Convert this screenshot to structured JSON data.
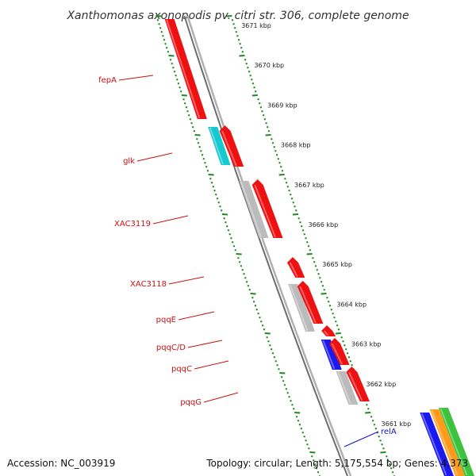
{
  "title": "Xanthomonas axonopodis pv. citri str. 306, complete genome",
  "footer": {
    "accession": "Accession: NC_003919",
    "topology": "Topology: circular; Length: 5,175,554 bp; Genes: 4,373"
  },
  "colors": {
    "backbone": "#8a8a8a",
    "ticks": "#1e8a1e",
    "gene_red": "#ee1111",
    "gene_cyan": "#16c8d0",
    "gene_grey": "#bbbbbb",
    "gene_blue": "#1a1aee",
    "gene_orange": "#ff9a1a",
    "gene_green": "#3cc23c",
    "label_red": "#cc1111",
    "label_blue": "#1111cc"
  },
  "scale_labels": [
    "3671 kbp",
    "3670 kbp",
    "3669 kbp",
    "3668 kbp",
    "3667 kbp",
    "3666 kbp",
    "3665 kbp",
    "3664 kbp",
    "3663 kbp",
    "3662 kbp",
    "3661 kbp"
  ],
  "gene_labels": [
    {
      "name": "fepA",
      "color": "red"
    },
    {
      "name": "glk",
      "color": "red"
    },
    {
      "name": "XAC3119",
      "color": "red"
    },
    {
      "name": "XAC3118",
      "color": "red"
    },
    {
      "name": "pqqE",
      "color": "red"
    },
    {
      "name": "pqqC/D",
      "color": "red"
    },
    {
      "name": "pqqC",
      "color": "red"
    },
    {
      "name": "pqqG",
      "color": "red"
    },
    {
      "name": "relA",
      "color": "blue"
    }
  ]
}
